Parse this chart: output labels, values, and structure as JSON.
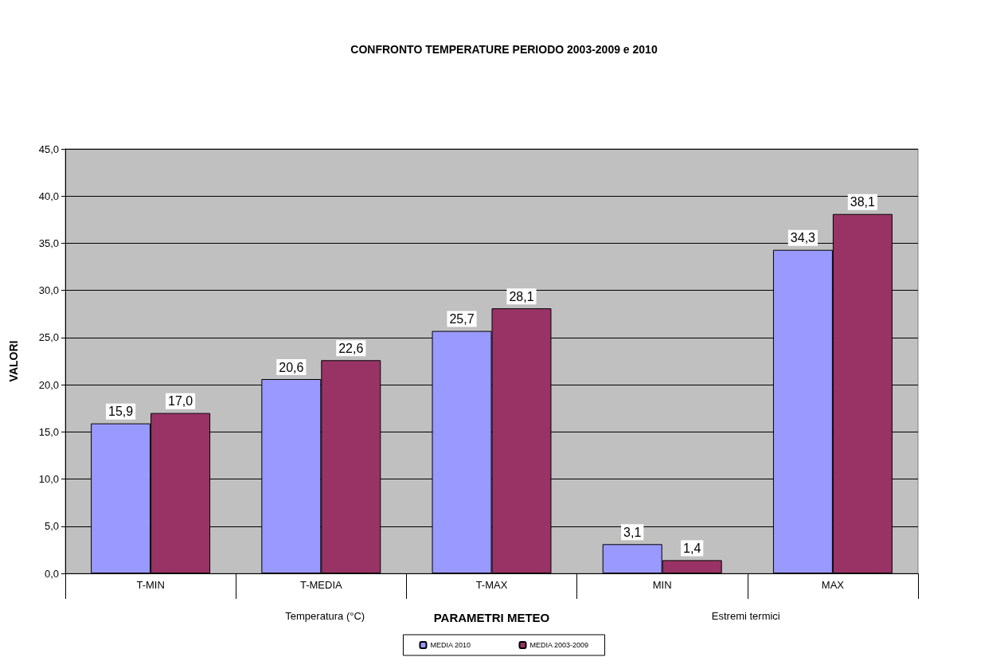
{
  "chart_data": {
    "type": "bar",
    "title": "CONFRONTO TEMPERATURE PERIODO 2003-2009 e 2010",
    "xlabel": "PARAMETRI METEO",
    "ylabel": "VALORI",
    "categories": [
      "T-MIN",
      "T-MEDIA",
      "T-MAX",
      "MIN",
      "MAX"
    ],
    "series": [
      {
        "name": "MEDIA 2010",
        "color": "#9999ff",
        "values": [
          15.9,
          20.6,
          25.7,
          3.1,
          34.3
        ],
        "value_labels": [
          "15,9",
          "20,6",
          "25,7",
          "3,1",
          "34,3"
        ]
      },
      {
        "name": "MEDIA 2003-2009",
        "color": "#993366",
        "values": [
          17.0,
          22.6,
          28.1,
          1.4,
          38.1
        ],
        "value_labels": [
          "17,0",
          "22,6",
          "28,1",
          "1,4",
          "38,1"
        ]
      }
    ],
    "annotations": [
      "Temperatura (°C)",
      "Estremi termici"
    ],
    "ylim": [
      0,
      45
    ],
    "yticks": [
      {
        "value": 0,
        "label": "0,0"
      },
      {
        "value": 5,
        "label": "5,0"
      },
      {
        "value": 10,
        "label": "10,0"
      },
      {
        "value": 15,
        "label": "15,0"
      },
      {
        "value": 20,
        "label": "20,0"
      },
      {
        "value": 25,
        "label": "25,0"
      },
      {
        "value": 30,
        "label": "30,0"
      },
      {
        "value": 35,
        "label": "35,0"
      },
      {
        "value": 40,
        "label": "40,0"
      },
      {
        "value": 45,
        "label": "45,0"
      }
    ],
    "grid": "y",
    "legend": "bottom"
  }
}
